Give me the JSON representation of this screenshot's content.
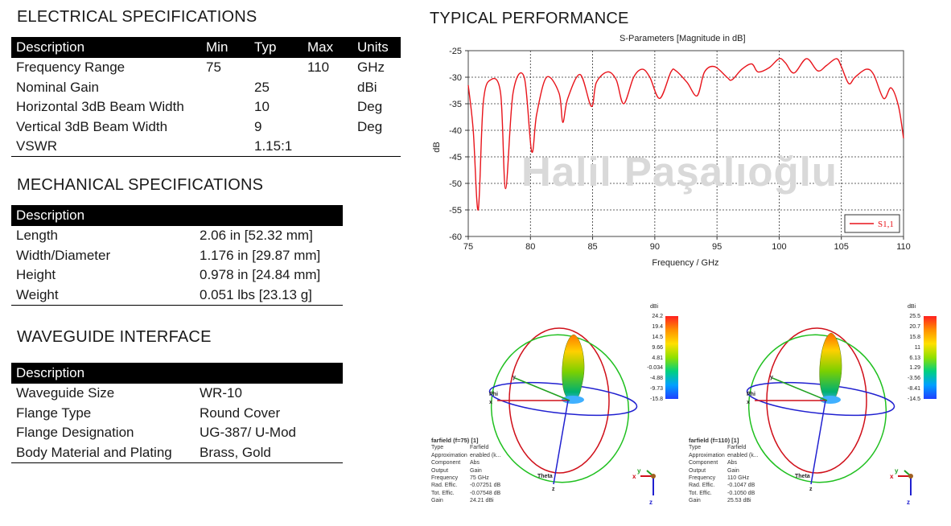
{
  "electrical": {
    "title": "ELECTRICAL SPECIFICATIONS",
    "headers": [
      "Description",
      "Min",
      "Typ",
      "Max",
      "Units"
    ],
    "rows": [
      [
        "Frequency Range",
        "75",
        "",
        "110",
        "GHz"
      ],
      [
        "Nominal Gain",
        "",
        "25",
        "",
        "dBi"
      ],
      [
        "Horizontal 3dB Beam Width",
        "",
        "10",
        "",
        "Deg"
      ],
      [
        "Vertical 3dB Beam Width",
        "",
        "9",
        "",
        "Deg"
      ],
      [
        "VSWR",
        "",
        "1.15:1",
        "",
        ""
      ]
    ]
  },
  "mechanical": {
    "title": "MECHANICAL SPECIFICATIONS",
    "header": "Description",
    "rows": [
      [
        "Length",
        "2.06 in [52.32 mm]"
      ],
      [
        "Width/Diameter",
        "1.176 in [29.87 mm]"
      ],
      [
        "Height",
        "0.978 in [24.84 mm]"
      ],
      [
        "Weight",
        "0.051 lbs [23.13 g]"
      ]
    ]
  },
  "waveguide": {
    "title": "WAVEGUIDE INTERFACE",
    "header": "Description",
    "rows": [
      [
        "Waveguide Size",
        "WR-10"
      ],
      [
        "Flange Type",
        "Round Cover"
      ],
      [
        "Flange Designation",
        "UG-387/ U-Mod"
      ],
      [
        "Body Material and Plating",
        "Brass, Gold"
      ]
    ]
  },
  "performance": {
    "title": "TYPICAL PERFORMANCE",
    "watermark": "Halil Paşalıoğlu"
  },
  "chart_data": {
    "type": "line",
    "title": "S-Parameters [Magnitude in dB]",
    "xlabel": "Frequency / GHz",
    "ylabel": "dB",
    "xlim": [
      75,
      110
    ],
    "ylim": [
      -60,
      -25
    ],
    "xticks": [
      75,
      80,
      85,
      90,
      95,
      100,
      105,
      110
    ],
    "yticks": [
      -25,
      -30,
      -35,
      -40,
      -45,
      -50,
      -55,
      -60
    ],
    "grid": true,
    "legend": "bottom-right",
    "series": [
      {
        "name": "S1,1",
        "color": "#e8141b",
        "x": [
          75,
          75.4,
          75.8,
          76.2,
          76.8,
          77.6,
          78.0,
          78.6,
          79.5,
          80.1,
          80.5,
          81.3,
          82.3,
          82.6,
          83.0,
          84.0,
          84.9,
          85.3,
          86.2,
          86.9,
          87.5,
          88.3,
          89.0,
          89.6,
          90.4,
          91.3,
          91.7,
          92.6,
          93.4,
          94.0,
          94.8,
          95.8,
          96.2,
          97.0,
          97.8,
          98.3,
          99.2,
          100.0,
          100.5,
          101.2,
          102.2,
          103.1,
          103.8,
          104.6,
          105.0,
          105.6,
          106.1,
          107.0,
          107.6,
          108.4,
          109.0,
          109.6,
          110
        ],
        "values": [
          -31.5,
          -40,
          -55,
          -35,
          -30.5,
          -33,
          -51,
          -33,
          -30,
          -44,
          -37,
          -30,
          -33,
          -38.5,
          -34,
          -29.5,
          -35.5,
          -31,
          -29,
          -30.5,
          -35,
          -30,
          -28.5,
          -30,
          -34,
          -29,
          -28.8,
          -31,
          -33.5,
          -29,
          -28,
          -30,
          -30.5,
          -28.5,
          -27.5,
          -29,
          -28.2,
          -26.5,
          -27.3,
          -29.2,
          -26.5,
          -28.8,
          -27.8,
          -26.5,
          -28,
          -31.2,
          -30,
          -28.5,
          -29.5,
          -34,
          -32,
          -35.5,
          -41.5
        ]
      }
    ]
  },
  "farfields": [
    {
      "header": "farfield (f=75) [1]",
      "labels": [
        "Type",
        "Approximation",
        "Component",
        "Output",
        "Frequency",
        "Rad. Effic.",
        "Tot. Effic.",
        "Gain"
      ],
      "values": [
        "Farfield",
        "enabled (k...",
        "Abs",
        "Gain",
        "75 GHz",
        "-0.07251 dB",
        "-0.07548 dB",
        "24.21 dBi"
      ],
      "scale_unit": "dBi",
      "scale": [
        "24.2",
        "19.4",
        "14.5",
        "9.66",
        "4.81",
        "-0.034",
        "-4.88",
        "-9.73",
        "-15.8"
      ],
      "axes": {
        "phi": "Phi",
        "theta": "Theta",
        "x": "x",
        "y": "y",
        "z": "z"
      }
    },
    {
      "header": "farfield (f=110) [1]",
      "labels": [
        "Type",
        "Approximation",
        "Component",
        "Output",
        "Frequency",
        "Rad. Effic.",
        "Tot. Effic.",
        "Gain"
      ],
      "values": [
        "Farfield",
        "enabled (k...",
        "Abs",
        "Gain",
        "110 GHz",
        "-0.1047 dB",
        "-0.1050 dB",
        "25.53 dBi"
      ],
      "scale_unit": "dBi",
      "scale": [
        "25.5",
        "20.7",
        "15.8",
        "11",
        "6.13",
        "1.29",
        "-3.56",
        "-8.41",
        "-14.5"
      ],
      "axes": {
        "phi": "Phi",
        "theta": "Theta",
        "x": "x",
        "y": "y",
        "z": "z"
      }
    }
  ]
}
